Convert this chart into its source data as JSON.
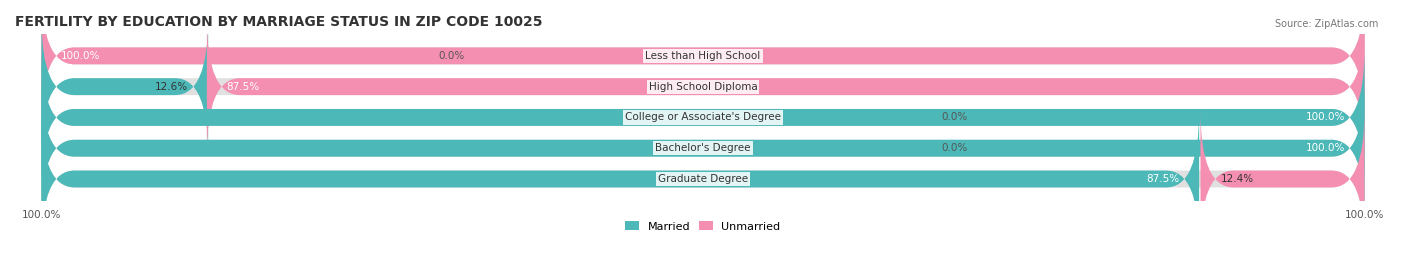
{
  "title": "FERTILITY BY EDUCATION BY MARRIAGE STATUS IN ZIP CODE 10025",
  "source": "Source: ZipAtlas.com",
  "categories": [
    "Less than High School",
    "High School Diploma",
    "College or Associate's Degree",
    "Bachelor's Degree",
    "Graduate Degree"
  ],
  "married": [
    0.0,
    12.6,
    100.0,
    100.0,
    87.5
  ],
  "unmarried": [
    100.0,
    87.5,
    0.0,
    0.0,
    12.4
  ],
  "married_color": "#4db8b8",
  "unmarried_color": "#f48fb1",
  "bg_color": "#f5f5f5",
  "bar_bg_color": "#e8e8e8",
  "title_fontsize": 10,
  "label_fontsize": 7.5,
  "bar_height": 0.55,
  "figsize": [
    14.06,
    2.69
  ],
  "dpi": 100
}
